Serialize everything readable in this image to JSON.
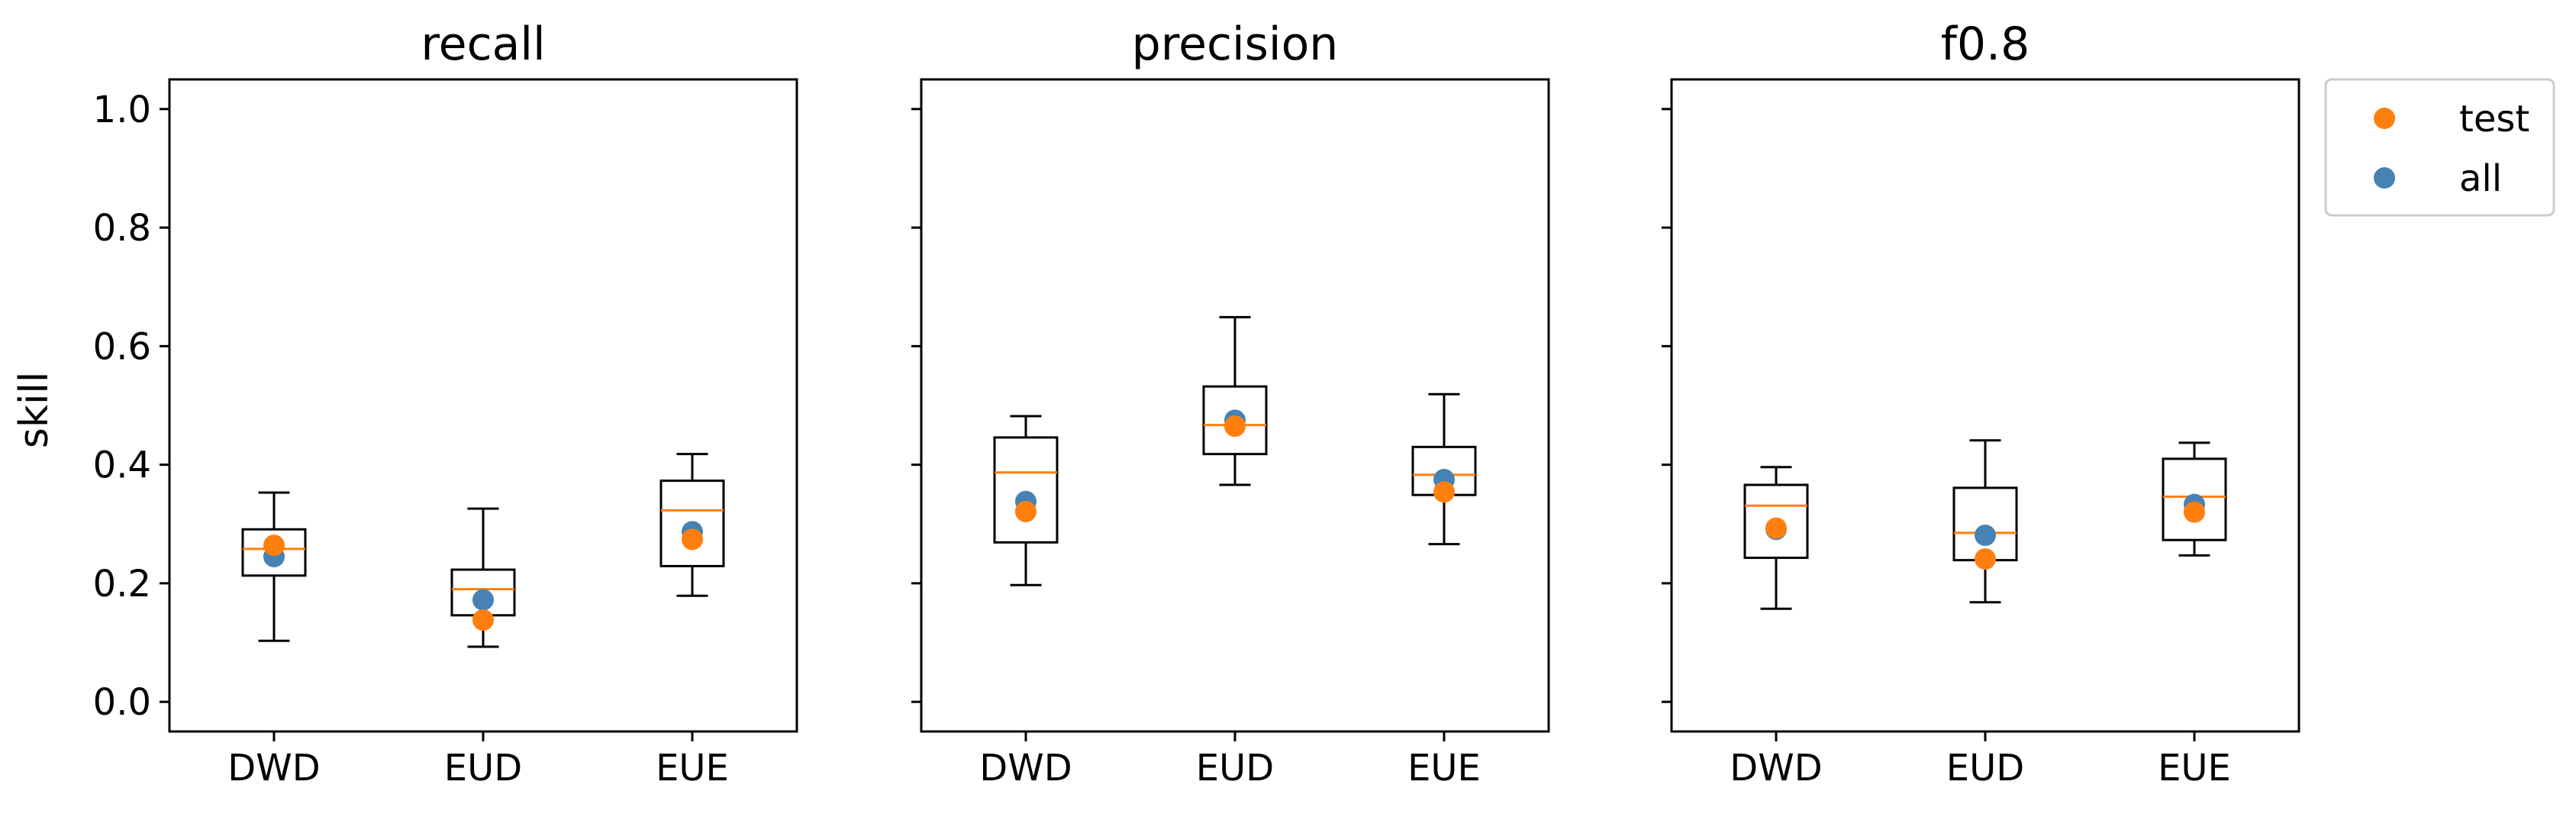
{
  "figure": {
    "ylabel": "skill",
    "legend": {
      "placement": "outside-top-right",
      "entries": [
        {
          "label": "test",
          "color": "#ff7f0e"
        },
        {
          "label": "all",
          "color": "#4682b4"
        }
      ]
    }
  },
  "chart_data": [
    {
      "type": "box",
      "title": "recall",
      "ylabel": "skill",
      "ylim": [
        -0.05,
        1.05
      ],
      "yticks": [
        "0.0",
        "0.2",
        "0.4",
        "0.6",
        "0.8",
        "1.0"
      ],
      "categories": [
        "DWD",
        "EUD",
        "EUE"
      ],
      "boxes": [
        {
          "whisker_low": 0.103,
          "q1": 0.213,
          "median": 0.258,
          "q3": 0.291,
          "whisker_high": 0.353,
          "test": 0.264,
          "all": 0.245
        },
        {
          "whisker_low": 0.093,
          "q1": 0.146,
          "median": 0.19,
          "q3": 0.223,
          "whisker_high": 0.326,
          "test": 0.138,
          "all": 0.172
        },
        {
          "whisker_low": 0.179,
          "q1": 0.229,
          "median": 0.323,
          "q3": 0.373,
          "whisker_high": 0.418,
          "test": 0.274,
          "all": 0.287
        }
      ]
    },
    {
      "type": "box",
      "title": "precision",
      "ylim": [
        -0.05,
        1.05
      ],
      "yticks": [
        "0.0",
        "0.2",
        "0.4",
        "0.6",
        "0.8",
        "1.0"
      ],
      "categories": [
        "DWD",
        "EUD",
        "EUE"
      ],
      "boxes": [
        {
          "whisker_low": 0.197,
          "q1": 0.269,
          "median": 0.387,
          "q3": 0.446,
          "whisker_high": 0.482,
          "test": 0.321,
          "all": 0.338
        },
        {
          "whisker_low": 0.366,
          "q1": 0.418,
          "median": 0.467,
          "q3": 0.532,
          "whisker_high": 0.649,
          "test": 0.465,
          "all": 0.475
        },
        {
          "whisker_low": 0.266,
          "q1": 0.349,
          "median": 0.383,
          "q3": 0.43,
          "whisker_high": 0.519,
          "test": 0.354,
          "all": 0.375
        }
      ]
    },
    {
      "type": "box",
      "title": "f0.8",
      "ylim": [
        -0.05,
        1.05
      ],
      "yticks": [
        "0.0",
        "0.2",
        "0.4",
        "0.6",
        "0.8",
        "1.0"
      ],
      "categories": [
        "DWD",
        "EUD",
        "EUE"
      ],
      "boxes": [
        {
          "whisker_low": 0.157,
          "q1": 0.243,
          "median": 0.331,
          "q3": 0.366,
          "whisker_high": 0.396,
          "test": 0.293,
          "all": 0.291
        },
        {
          "whisker_low": 0.168,
          "q1": 0.239,
          "median": 0.285,
          "q3": 0.361,
          "whisker_high": 0.441,
          "test": 0.241,
          "all": 0.281
        },
        {
          "whisker_low": 0.247,
          "q1": 0.273,
          "median": 0.346,
          "q3": 0.41,
          "whisker_high": 0.437,
          "test": 0.32,
          "all": 0.333
        }
      ]
    }
  ]
}
